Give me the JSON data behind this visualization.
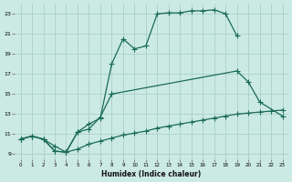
{
  "xlabel": "Humidex (Indice chaleur)",
  "bg_color": "#cceae4",
  "grid_color": "#aacfc8",
  "line_color": "#1a6b5a",
  "xlim": [
    -0.5,
    23.5
  ],
  "ylim": [
    8.5,
    24.0
  ],
  "yticks": [
    9,
    11,
    13,
    15,
    17,
    19,
    21,
    23
  ],
  "xticks": [
    0,
    1,
    2,
    3,
    4,
    5,
    6,
    7,
    8,
    9,
    10,
    11,
    12,
    13,
    14,
    15,
    16,
    17,
    18,
    19,
    20,
    21,
    22,
    23
  ],
  "s1x": [
    0,
    1,
    2,
    3,
    4,
    5,
    6,
    7,
    8,
    9,
    10,
    11,
    12,
    13,
    14,
    15,
    16,
    17,
    18,
    19
  ],
  "s1y": [
    10.5,
    10.8,
    10.5,
    9.3,
    9.2,
    11.2,
    12.0,
    12.6,
    18.0,
    20.5,
    19.5,
    19.8,
    23.0,
    23.1,
    23.1,
    23.3,
    23.3,
    23.4,
    23.0,
    20.8
  ],
  "s2x_a": [
    0,
    1,
    2,
    3,
    4,
    5,
    6,
    7,
    8
  ],
  "s2y_a": [
    10.5,
    10.8,
    10.5,
    9.3,
    9.2,
    11.2,
    11.5,
    12.7,
    15.0
  ],
  "s2x_b": [
    8,
    19,
    20,
    21,
    23
  ],
  "s2y_b": [
    15.0,
    17.3,
    16.2,
    14.2,
    12.8
  ],
  "s3x": [
    0,
    1,
    2,
    3,
    4,
    5,
    6,
    7,
    8,
    9,
    10,
    11,
    12,
    13,
    14,
    15,
    16,
    17,
    18,
    19,
    20,
    21,
    22,
    23
  ],
  "s3y": [
    10.5,
    10.8,
    10.5,
    9.8,
    9.2,
    9.5,
    10.0,
    10.3,
    10.6,
    10.9,
    11.1,
    11.3,
    11.6,
    11.8,
    12.0,
    12.2,
    12.4,
    12.6,
    12.8,
    13.0,
    13.1,
    13.2,
    13.3,
    13.4
  ]
}
